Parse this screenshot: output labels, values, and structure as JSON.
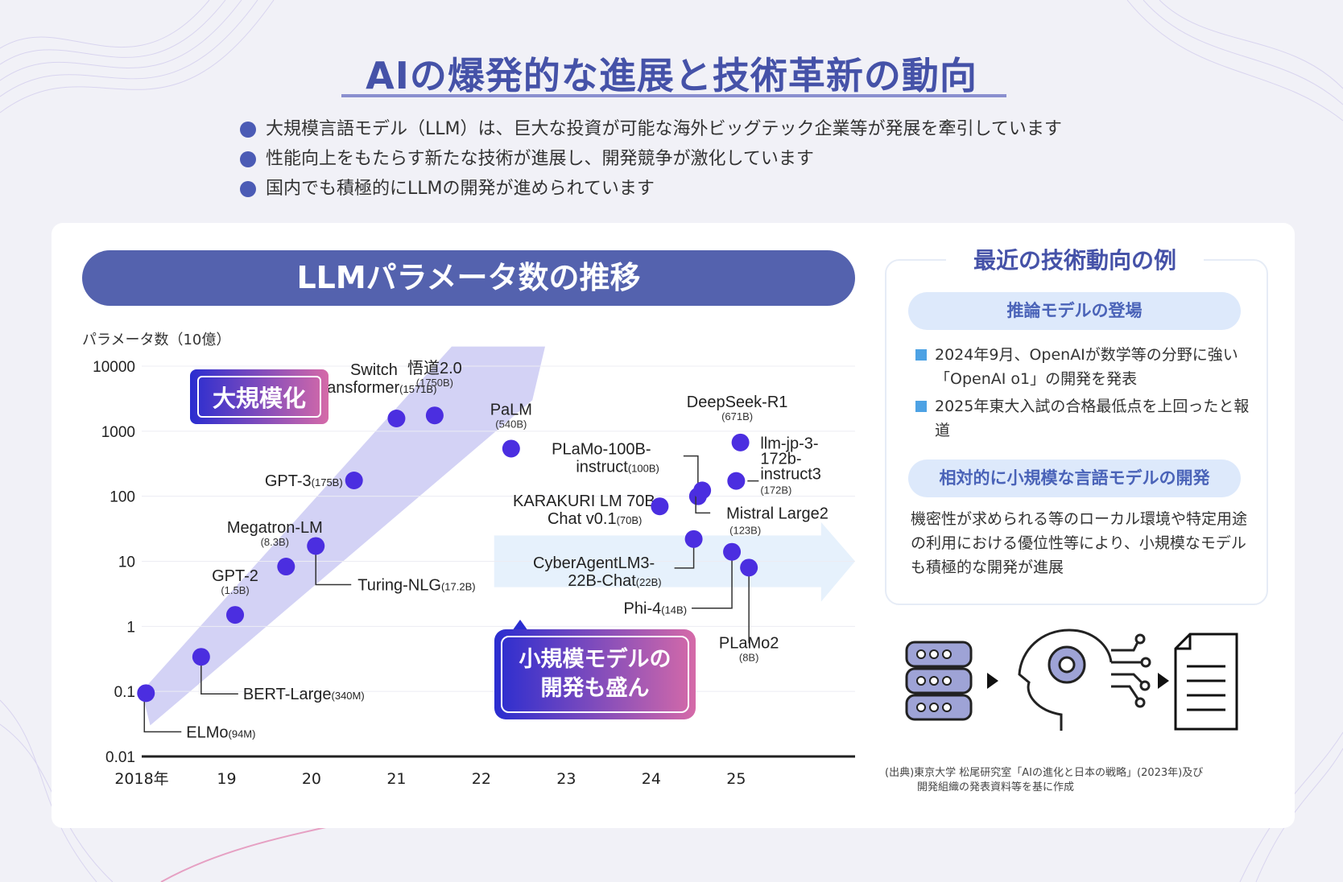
{
  "title": "AIの爆発的な進展と技術革新の動向",
  "bullets": [
    "大規模言語モデル（LLM）は、巨大な投資が可能な海外ビッグテック企業等が発展を牽引しています",
    "性能向上をもたらす新たな技術が進展し、開発競争が激化しています",
    "国内でも積極的にLLMの開発が進められています"
  ],
  "chart_banner": "LLMパラメータ数の推移",
  "chart_data": {
    "type": "scatter",
    "title": "LLMパラメータ数の推移",
    "ylabel": "パラメータ数（10億）",
    "xlabel": "",
    "yscale": "log",
    "ylim": [
      0.01,
      10000
    ],
    "yticks": [
      "10000",
      "1000",
      "100",
      "10",
      "1",
      "0.1",
      "0.01"
    ],
    "xlim": [
      2018,
      2026.4
    ],
    "xticks": [
      "2018年",
      "19",
      "20",
      "21",
      "22",
      "23",
      "24",
      "25"
    ],
    "point_color": "#4b2ee0",
    "points": [
      {
        "name": "ELMo",
        "size": "(94M)",
        "x": 2018.05,
        "y": 0.094
      },
      {
        "name": "BERT-Large",
        "size": "(340M)",
        "x": 2018.7,
        "y": 0.34
      },
      {
        "name": "GPT-2",
        "size": "(1.5B)",
        "x": 2019.1,
        "y": 1.5
      },
      {
        "name": "Megatron-LM",
        "size": "(8.3B)",
        "x": 2019.7,
        "y": 8.3
      },
      {
        "name": "Turing-NLG",
        "size": "(17.2B)",
        "x": 2020.05,
        "y": 17.2
      },
      {
        "name": "GPT-3",
        "size": "(175B)",
        "x": 2020.5,
        "y": 175
      },
      {
        "name": "Switch Transformer",
        "size": "(1571B)",
        "x": 2021.0,
        "y": 1571
      },
      {
        "name": "悟道2.0",
        "size": "(1750B)",
        "x": 2021.45,
        "y": 1750
      },
      {
        "name": "PaLM",
        "size": "(540B)",
        "x": 2022.35,
        "y": 540
      },
      {
        "name": "KARAKURI LM 70B Chat v0.1",
        "size": "(70B)",
        "x": 2024.1,
        "y": 70
      },
      {
        "name": "PLaMo-100B-instruct",
        "size": "(100B)",
        "x": 2024.55,
        "y": 100
      },
      {
        "name": "Mistral Large2",
        "size": "(123B)",
        "x": 2024.6,
        "y": 123
      },
      {
        "name": "CyberAgentLM3-22B-Chat",
        "size": "(22B)",
        "x": 2024.5,
        "y": 22
      },
      {
        "name": "DeepSeek-R1",
        "size": "(671B)",
        "x": 2025.05,
        "y": 671
      },
      {
        "name": "llm-jp-3-172b-instruct3",
        "size": "(172B)",
        "x": 2025.0,
        "y": 172
      },
      {
        "name": "Phi-4",
        "size": "(14B)",
        "x": 2024.95,
        "y": 14
      },
      {
        "name": "PLaMo2",
        "size": "(8B)",
        "x": 2025.15,
        "y": 8
      }
    ],
    "annotations": [
      "大規模化",
      "小規模モデルの開発も盛ん"
    ]
  },
  "callouts": {
    "large": "大規模化",
    "small_line1": "小規模モデルの",
    "small_line2": "開発も盛ん"
  },
  "side": {
    "heading": "最近の技術動向の例",
    "pill1": "推論モデルの登場",
    "items": [
      "2024年9月、OpenAIが数学等の分野に強い「OpenAI o1」の開発を発表",
      "2025年東大入試の合格最低点を上回ったと報道"
    ],
    "pill2": "相対的に小規模な言語モデルの開発",
    "text": "機密性が求められる等のローカル環境や特定用途の利用における優位性等により、小規模なモデルも積極的な開発が進展"
  },
  "source_line1": "(出典)東京大学 松尾研究室「AIの進化と日本の戦略」(2023年)及び",
  "source_line2": "開発組織の発表資料等を基に作成",
  "colors": {
    "accent": "#4552a8",
    "banner": "#5462ae",
    "point": "#4b2ee0",
    "pill": "#dde9fb"
  }
}
